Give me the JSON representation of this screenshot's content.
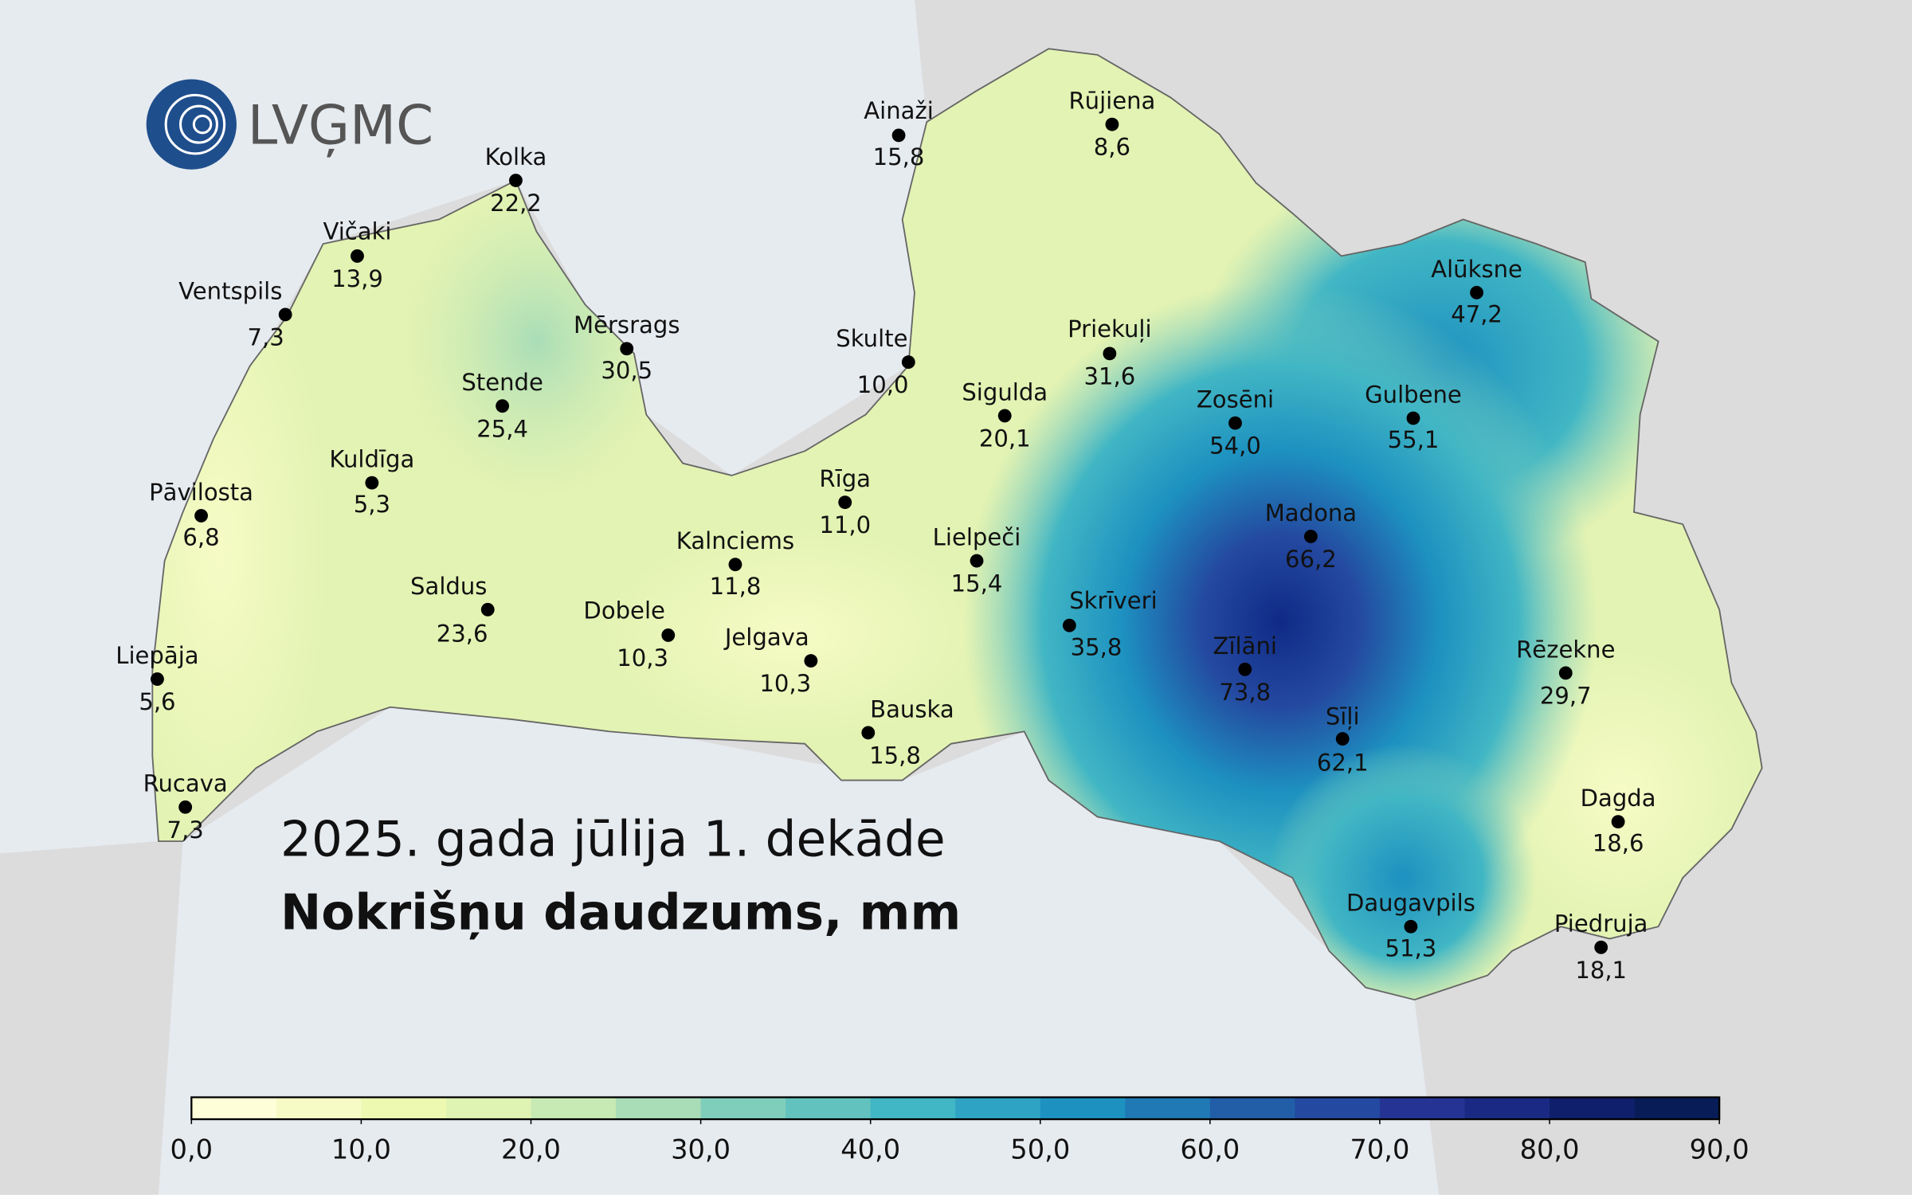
{
  "logo": "LVĢMC",
  "title": "2025. gada jūlija 1. dekāde",
  "subtitle": "Nokrišņu daudzums, mm",
  "stations": [
    {
      "name": "Ainaži",
      "value": "15,8"
    },
    {
      "name": "Rūjiena",
      "value": "8,6"
    },
    {
      "name": "Kolka",
      "value": "22,2"
    },
    {
      "name": "Vičaki",
      "value": "13,9"
    },
    {
      "name": "Ventspils",
      "value": "7,3"
    },
    {
      "name": "Mērsrags",
      "value": "30,5"
    },
    {
      "name": "Skulte",
      "value": "10,0"
    },
    {
      "name": "Priekuļi",
      "value": "31,6"
    },
    {
      "name": "Alūksne",
      "value": "47,2"
    },
    {
      "name": "Stende",
      "value": "25,4"
    },
    {
      "name": "Sigulda",
      "value": "20,1"
    },
    {
      "name": "Zosēni",
      "value": "54,0"
    },
    {
      "name": "Gulbene",
      "value": "55,1"
    },
    {
      "name": "Kuldīga",
      "value": "5,3"
    },
    {
      "name": "Pāvilosta",
      "value": "6,8"
    },
    {
      "name": "Rīga",
      "value": "11,0"
    },
    {
      "name": "Madona",
      "value": "66,2"
    },
    {
      "name": "Kalnciems",
      "value": "11,8"
    },
    {
      "name": "Lielpeči",
      "value": "15,4"
    },
    {
      "name": "Saldus",
      "value": "23,6"
    },
    {
      "name": "Dobele",
      "value": "10,3"
    },
    {
      "name": "Skrīveri",
      "value": "35,8"
    },
    {
      "name": "Liepāja",
      "value": "5,6"
    },
    {
      "name": "Zīlāni",
      "value": "73,8"
    },
    {
      "name": "Jelgava",
      "value": "10,3"
    },
    {
      "name": "Rēzekne",
      "value": "29,7"
    },
    {
      "name": "Bauska",
      "value": "15,8"
    },
    {
      "name": "Sīļi",
      "value": "62,1"
    },
    {
      "name": "Rucava",
      "value": "7,3"
    },
    {
      "name": "Dagda",
      "value": "18,6"
    },
    {
      "name": "Daugavpils",
      "value": "51,3"
    },
    {
      "name": "Piedruja",
      "value": "18,1"
    }
  ],
  "colorbar": {
    "lim": [
      0,
      90
    ],
    "colors": [
      "#fefed8",
      "#f6fbc5",
      "#edf8b1",
      "#dff3b2",
      "#c7e9b4",
      "#a9ddb7",
      "#7fcdbb",
      "#62c3be",
      "#41b6c4",
      "#2fa3c3",
      "#1d91c0",
      "#2079b5",
      "#225ea8",
      "#2449a0",
      "#253494",
      "#1a2a84",
      "#0f1f6b",
      "#081d58"
    ],
    "ticks": [
      {
        "value": 0,
        "label": "0,0"
      },
      {
        "value": 10,
        "label": "10,0"
      },
      {
        "value": 20,
        "label": "20,0"
      },
      {
        "value": 30,
        "label": "30,0"
      },
      {
        "value": 40,
        "label": "40,0"
      },
      {
        "value": 50,
        "label": "50,0"
      },
      {
        "value": 60,
        "label": "60,0"
      },
      {
        "value": 70,
        "label": "70,0"
      },
      {
        "value": 80,
        "label": "80,0"
      },
      {
        "value": 90,
        "label": "90,0"
      }
    ]
  }
}
